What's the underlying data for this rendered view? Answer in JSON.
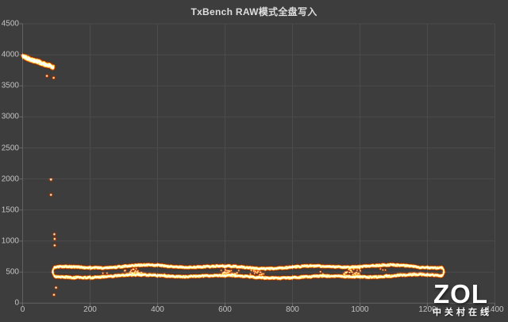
{
  "page": {
    "title_text": "TxBench RAW模式全盘写入"
  },
  "watermark": {
    "logo_text": "ZOL",
    "site_name": "中关村在线"
  },
  "colors": {
    "background": "#3d3d3d",
    "gridline": "#4b4b4b",
    "axis_line": "#616161",
    "tick_mark": "#6a6a6a",
    "tick_label": "#c3c3c3",
    "title": "#dedede",
    "point_glow": "#762d0a",
    "point_mid": "#e06428",
    "point_core": "#ffcd9e",
    "watermark": "#ffffff"
  },
  "chart_data": {
    "type": "scatter",
    "title": "TxBench RAW模式全盘写入",
    "xlabel": "",
    "ylabel": "",
    "xlim": [
      0,
      1400
    ],
    "ylim": [
      0,
      4500
    ],
    "x_ticks": [
      0,
      200,
      400,
      600,
      800,
      1000,
      1200,
      1400
    ],
    "y_ticks": [
      0,
      500,
      1000,
      1500,
      2000,
      2500,
      3000,
      3500,
      4000,
      4500
    ],
    "grid": true,
    "legend": "none",
    "marker_style": "glowing-orange-dots",
    "series": [
      {
        "name": "cache-burst-segment",
        "kind": "dense_segment",
        "x_range": [
          0,
          93
        ],
        "y_start": 3970,
        "y_end": 3800,
        "y_jitter": 55
      },
      {
        "name": "transition-drop-points",
        "kind": "points",
        "points": [
          [
            72,
            3660
          ],
          [
            92,
            3630
          ],
          [
            84,
            1990
          ],
          [
            84,
            1745
          ],
          [
            94,
            1110
          ],
          [
            95,
            1035
          ],
          [
            95,
            930
          ],
          [
            99,
            250
          ],
          [
            93,
            135
          ]
        ]
      },
      {
        "name": "sustained-write-band",
        "kind": "band",
        "x_range": [
          95,
          1243
        ],
        "band_top": 585,
        "band_bottom": 430,
        "mid_scatter_range": [
          455,
          555
        ]
      }
    ]
  }
}
